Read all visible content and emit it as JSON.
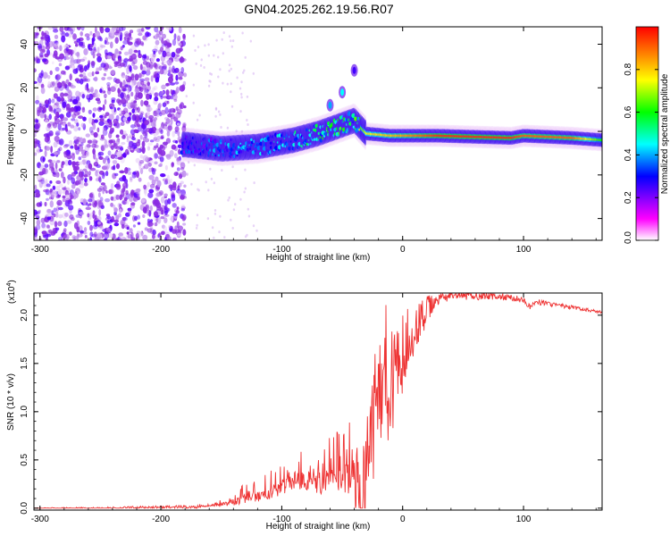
{
  "figure": {
    "title": "GN04.2025.262.19.56.R07"
  },
  "chart_data": [
    {
      "type": "heatmap",
      "title": "GN04.2025.262.19.56.R07",
      "xlabel": "Height of straight line (km)",
      "ylabel": "Frequency (Hz)",
      "xlim": [
        -305,
        165
      ],
      "ylim": [
        -50,
        48
      ],
      "xticks": [
        -300,
        -200,
        -100,
        0,
        100
      ],
      "xtick_labels": [
        "-300",
        "-200",
        "-100",
        "0",
        "100"
      ],
      "yticks": [
        -40,
        -20,
        0,
        20,
        40
      ],
      "ytick_labels": [
        "-40",
        "-20",
        "0",
        "20",
        "40"
      ],
      "colorbar": {
        "label": "Normalized spectral amplitude",
        "range": [
          0,
          1
        ],
        "ticks": [
          0.0,
          0.2,
          0.4,
          0.6,
          0.8
        ],
        "tick_labels": [
          "0.0",
          "0.2",
          "0.4",
          "0.6",
          "0.8"
        ],
        "colormap": [
          "#ffffff",
          "#ff00ff",
          "#0000ff",
          "#00ffff",
          "#00ff00",
          "#ffff00",
          "#ff0000"
        ]
      },
      "noise_region": {
        "x_range": [
          -305,
          -180
        ],
        "level": 0.2
      },
      "ridge": [
        {
          "x": -180,
          "freq": -6,
          "amp": 0.3
        },
        {
          "x": -150,
          "freq": -8,
          "amp": 0.35
        },
        {
          "x": -120,
          "freq": -7,
          "amp": 0.4
        },
        {
          "x": -90,
          "freq": -4,
          "amp": 0.45
        },
        {
          "x": -70,
          "freq": -1,
          "amp": 0.5
        },
        {
          "x": -50,
          "freq": 3,
          "amp": 0.55
        },
        {
          "x": -40,
          "freq": 5,
          "amp": 0.5
        },
        {
          "x": -30,
          "freq": -1,
          "amp": 0.75
        },
        {
          "x": -10,
          "freq": -2,
          "amp": 0.8
        },
        {
          "x": 30,
          "freq": -2,
          "amp": 0.95
        },
        {
          "x": 90,
          "freq": -3,
          "amp": 0.95
        },
        {
          "x": 100,
          "freq": -2,
          "amp": 0.9
        },
        {
          "x": 140,
          "freq": -3,
          "amp": 0.9
        },
        {
          "x": 165,
          "freq": -4,
          "amp": 0.6
        }
      ],
      "secondary_blobs": [
        {
          "x": -50,
          "freq": 18,
          "amp": 0.3
        },
        {
          "x": -60,
          "freq": 12,
          "amp": 0.25
        },
        {
          "x": -40,
          "freq": 28,
          "amp": 0.1
        }
      ]
    },
    {
      "type": "line",
      "xlabel": "Height of straight line (km)",
      "ylabel": "SNR (10 * v/v)",
      "y_multiplier": "(x10",
      "y_multiplier_exp": "4",
      "y_multiplier_close": ")",
      "xlim": [
        -305,
        165
      ],
      "ylim": [
        -0.02,
        2.23
      ],
      "xticks": [
        -300,
        -200,
        -100,
        0,
        100
      ],
      "xtick_labels": [
        "-300",
        "-200",
        "-100",
        "0",
        "100"
      ],
      "yticks": [
        0.0,
        0.5,
        1.0,
        1.5,
        2.0
      ],
      "ytick_labels": [
        "0.0",
        "0.5",
        "1.0",
        "1.5",
        "2.0"
      ],
      "series": [
        {
          "name": "SNR",
          "color": "#ee3333",
          "x": [
            -305,
            -250,
            -200,
            -170,
            -150,
            -130,
            -110,
            -100,
            -90,
            -80,
            -70,
            -60,
            -50,
            -45,
            -40,
            -35,
            -30,
            -25,
            -22,
            -20,
            -15,
            -10,
            -5,
            0,
            5,
            10,
            20,
            30,
            40,
            50,
            60,
            70,
            80,
            90,
            100,
            105,
            110,
            120,
            140,
            165
          ],
          "y": [
            0.0,
            0.0,
            0.01,
            0.01,
            0.03,
            0.07,
            0.13,
            0.18,
            0.25,
            0.25,
            0.2,
            0.26,
            0.25,
            0.22,
            0.35,
            0.3,
            0.5,
            0.9,
            1.5,
            1.2,
            1.4,
            1.3,
            1.5,
            1.6,
            1.7,
            1.85,
            2.05,
            2.17,
            2.2,
            2.2,
            2.2,
            2.2,
            2.19,
            2.18,
            2.16,
            2.08,
            2.14,
            2.12,
            2.08,
            2.03
          ]
        }
      ],
      "noise_amplitude": [
        {
          "x": -305,
          "amp": 0.005
        },
        {
          "x": -160,
          "amp": 0.02
        },
        {
          "x": -120,
          "amp": 0.15
        },
        {
          "x": -60,
          "amp": 0.3
        },
        {
          "x": -30,
          "amp": 0.5
        },
        {
          "x": -20,
          "amp": 0.6
        },
        {
          "x": -5,
          "amp": 0.45
        },
        {
          "x": 15,
          "amp": 0.2
        },
        {
          "x": 30,
          "amp": 0.05
        },
        {
          "x": 165,
          "amp": 0.015
        }
      ]
    }
  ]
}
